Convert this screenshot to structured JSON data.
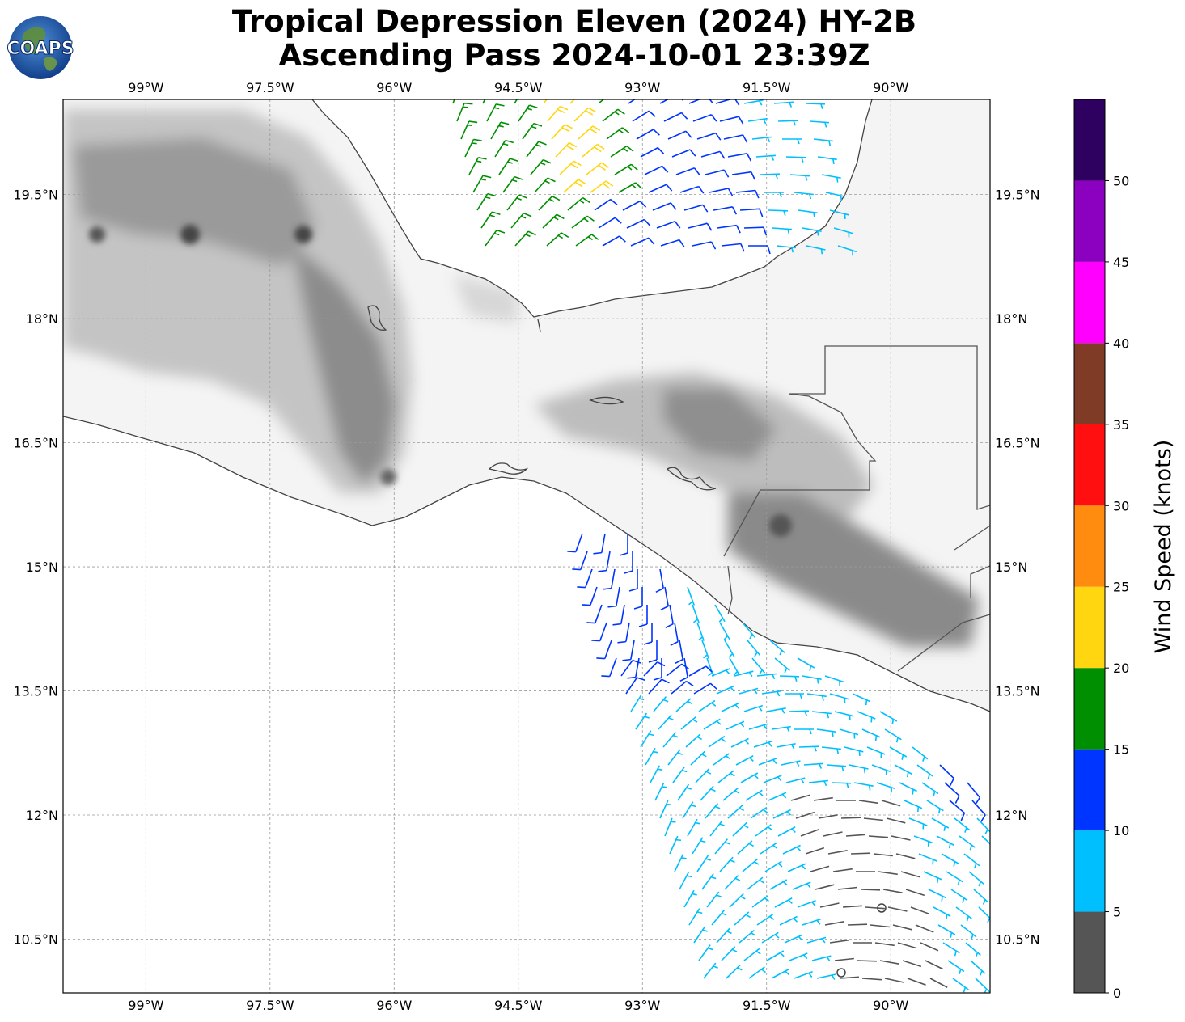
{
  "title": {
    "line1": "Tropical Depression Eleven (2024) HY-2B",
    "line2": "Ascending Pass 2024-10-01 23:39Z"
  },
  "logo": {
    "text": "COAPS",
    "icon": "globe-logo-icon"
  },
  "map": {
    "lon_range": [
      -100.0,
      -88.8
    ],
    "lat_range": [
      9.85,
      20.65
    ],
    "lon_ticks": [
      {
        "value": -99.0,
        "label": "99°W"
      },
      {
        "value": -97.5,
        "label": "97.5°W"
      },
      {
        "value": -96.0,
        "label": "96°W"
      },
      {
        "value": -94.5,
        "label": "94.5°W"
      },
      {
        "value": -93.0,
        "label": "93°W"
      },
      {
        "value": -91.5,
        "label": "91.5°W"
      },
      {
        "value": -90.0,
        "label": "90°W"
      }
    ],
    "lat_ticks": [
      {
        "value": 19.5,
        "label": "19.5°N"
      },
      {
        "value": 18.0,
        "label": "18°N"
      },
      {
        "value": 16.5,
        "label": "16.5°N"
      },
      {
        "value": 15.0,
        "label": "15°N"
      },
      {
        "value": 13.5,
        "label": "13.5°N"
      },
      {
        "value": 12.0,
        "label": "12°N"
      },
      {
        "value": 10.5,
        "label": "10.5°N"
      }
    ],
    "gridlines": true,
    "background": "grayscale terrain elevation"
  },
  "colorbar": {
    "label": "Wind Speed (knots)",
    "range": [
      0,
      55
    ],
    "bins": [
      {
        "from": 0,
        "to": 5,
        "color": "#555555"
      },
      {
        "from": 5,
        "to": 10,
        "color": "#00bfff"
      },
      {
        "from": 10,
        "to": 15,
        "color": "#0034ff"
      },
      {
        "from": 15,
        "to": 20,
        "color": "#008f00"
      },
      {
        "from": 20,
        "to": 25,
        "color": "#ffd60f"
      },
      {
        "from": 25,
        "to": 30,
        "color": "#ff8c0f"
      },
      {
        "from": 30,
        "to": 35,
        "color": "#ff0f0f"
      },
      {
        "from": 35,
        "to": 40,
        "color": "#7f3b26"
      },
      {
        "from": 40,
        "to": 45,
        "color": "#ff00ff"
      },
      {
        "from": 45,
        "to": 50,
        "color": "#8c00bf"
      },
      {
        "from": 50,
        "to": 55,
        "color": "#2e005f"
      }
    ],
    "ticks": [
      "0",
      "5",
      "10",
      "15",
      "20",
      "25",
      "30",
      "35",
      "40",
      "45",
      "50"
    ]
  }
}
